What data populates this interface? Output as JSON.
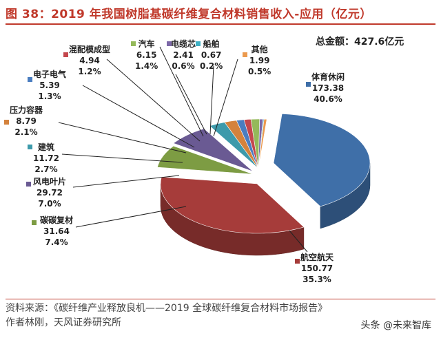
{
  "title": "图 38：2019 年我国树脂基碳纤维复合材料销售收入-应用（亿元）",
  "total": "总金额：427.6亿元",
  "source_line1": "资料来源：《碳纤维产业释放良机——2019 全球碳纤维复合材料市场报告》",
  "source_line2": "作者林刚，天风证券研究所",
  "watermark": "头条 @未来智库",
  "chart_data": {
    "type": "pie",
    "style": "3d-exploded",
    "unit": "亿元",
    "total": 427.6,
    "slices": [
      {
        "name": "体育休闲",
        "value": "173.38",
        "pct": "40.6%",
        "color": "#3f6fa8"
      },
      {
        "name": "航空航天",
        "value": "150.77",
        "pct": "35.3%",
        "color": "#a63c3a"
      },
      {
        "name": "碳碳复材",
        "value": "31.64",
        "pct": "7.4%",
        "color": "#7d9c43"
      },
      {
        "name": "风电叶片",
        "value": "29.72",
        "pct": "7.0%",
        "color": "#6a5a93"
      },
      {
        "name": "建筑",
        "value": "11.72",
        "pct": "2.7%",
        "color": "#3d9aab"
      },
      {
        "name": "压力容器",
        "value": "8.79",
        "pct": "2.1%",
        "color": "#d4823c"
      },
      {
        "name": "电子电气",
        "value": "5.39",
        "pct": "1.3%",
        "color": "#4a7dc0"
      },
      {
        "name": "混配模成型",
        "value": "4.94",
        "pct": "1.2%",
        "color": "#c4474d"
      },
      {
        "name": "汽车",
        "value": "6.15",
        "pct": "1.4%",
        "color": "#94b95a"
      },
      {
        "name": "电缆芯",
        "value": "2.41",
        "pct": "0.6%",
        "color": "#7c68a8"
      },
      {
        "name": "船舶",
        "value": "0.67",
        "pct": "0.2%",
        "color": "#3fb0c4"
      },
      {
        "name": "其他",
        "value": "1.99",
        "pct": "0.5%",
        "color": "#eb9a4e"
      }
    ]
  }
}
